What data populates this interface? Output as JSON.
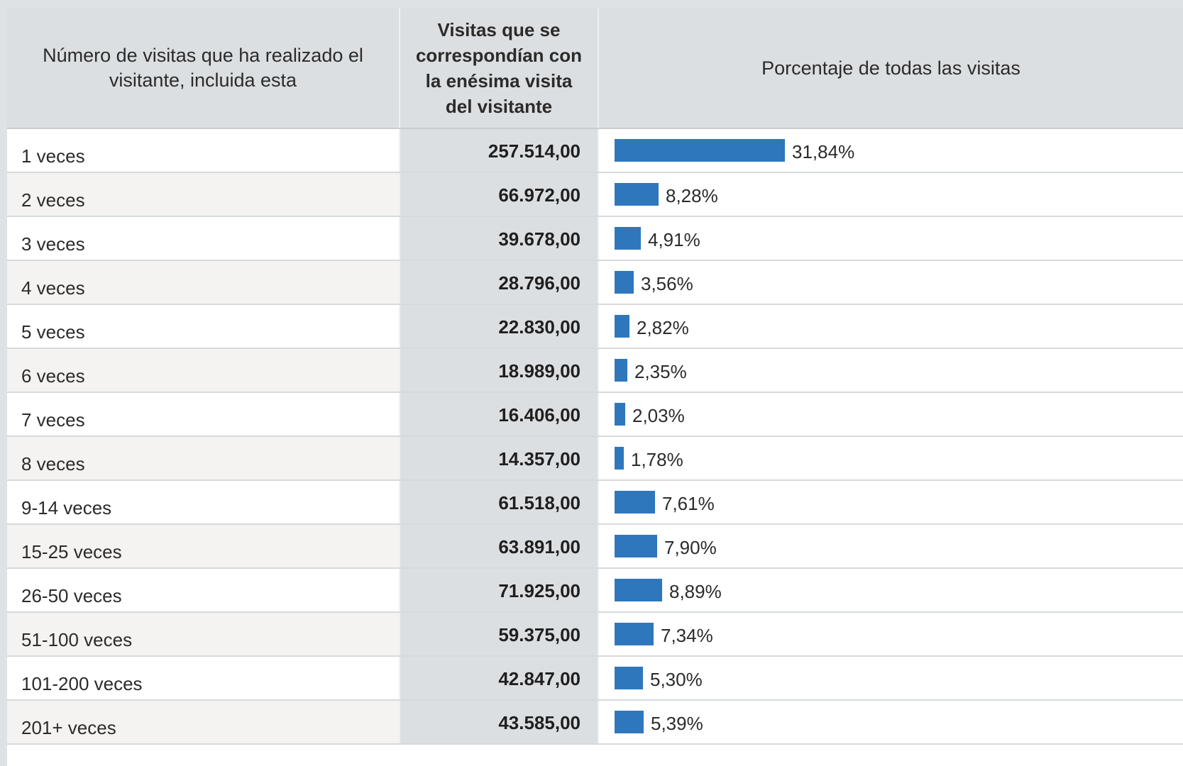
{
  "header": {
    "col1": "Número de visitas que ha realizado el visitante, incluida esta",
    "col2": "Visitas que se correspondían con la enésima visita del visitante",
    "col3": "Porcentaje de todas las visitas"
  },
  "colors": {
    "bar": "#2f77bc",
    "header_bg": "#dcdfe1"
  },
  "rows": [
    {
      "label": "1 veces",
      "visits": "257.514,00",
      "percent_text": "31,84%",
      "percent": 31.84
    },
    {
      "label": "2 veces",
      "visits": "66.972,00",
      "percent_text": "8,28%",
      "percent": 8.28
    },
    {
      "label": "3 veces",
      "visits": "39.678,00",
      "percent_text": "4,91%",
      "percent": 4.91
    },
    {
      "label": "4 veces",
      "visits": "28.796,00",
      "percent_text": "3,56%",
      "percent": 3.56
    },
    {
      "label": "5 veces",
      "visits": "22.830,00",
      "percent_text": "2,82%",
      "percent": 2.82
    },
    {
      "label": "6 veces",
      "visits": "18.989,00",
      "percent_text": "2,35%",
      "percent": 2.35
    },
    {
      "label": "7 veces",
      "visits": "16.406,00",
      "percent_text": "2,03%",
      "percent": 2.03
    },
    {
      "label": "8 veces",
      "visits": "14.357,00",
      "percent_text": "1,78%",
      "percent": 1.78
    },
    {
      "label": "9-14 veces",
      "visits": "61.518,00",
      "percent_text": "7,61%",
      "percent": 7.61
    },
    {
      "label": "15-25 veces",
      "visits": "63.891,00",
      "percent_text": "7,90%",
      "percent": 7.9
    },
    {
      "label": "26-50 veces",
      "visits": "71.925,00",
      "percent_text": "8,89%",
      "percent": 8.89
    },
    {
      "label": "51-100 veces",
      "visits": "59.375,00",
      "percent_text": "7,34%",
      "percent": 7.34
    },
    {
      "label": "101-200 veces",
      "visits": "42.847,00",
      "percent_text": "5,30%",
      "percent": 5.3
    },
    {
      "label": "201+ veces",
      "visits": "43.585,00",
      "percent_text": "5,39%",
      "percent": 5.39
    }
  ]
}
